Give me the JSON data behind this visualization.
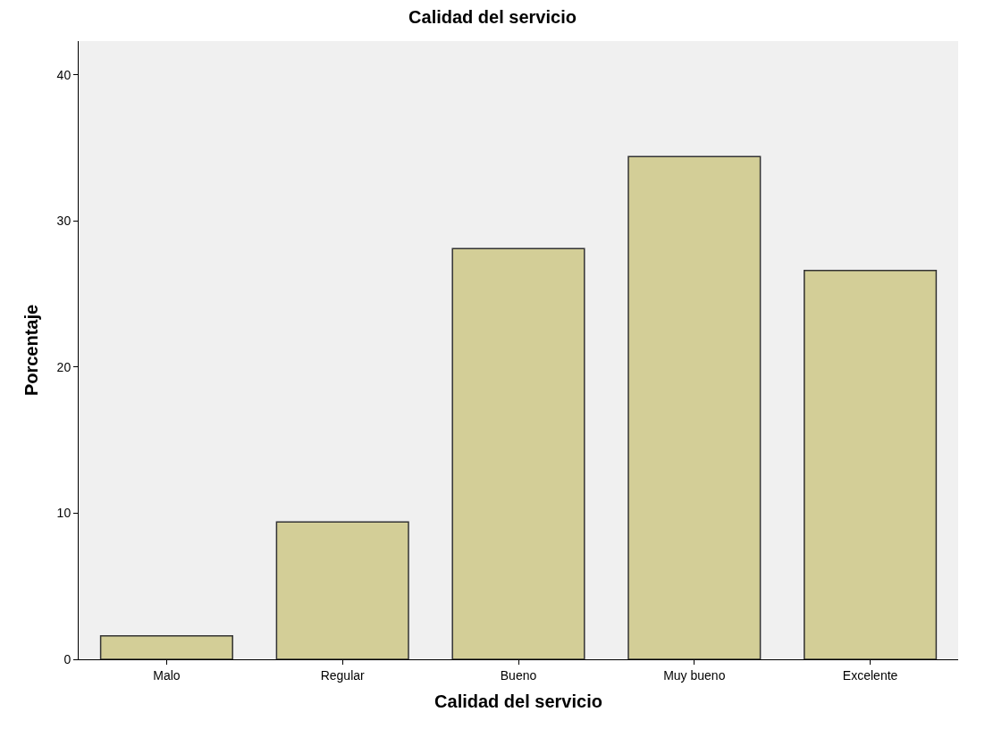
{
  "chart_data": {
    "type": "bar",
    "title": "Calidad del servicio",
    "xlabel": "Calidad del servicio",
    "ylabel": "Porcentaje",
    "categories": [
      "Malo",
      "Regular",
      "Bueno",
      "Muy bueno",
      "Excelente"
    ],
    "values": [
      1.6,
      9.4,
      28.1,
      34.4,
      26.6
    ],
    "color": "#d3ce97",
    "ylim": [
      0,
      42.3
    ],
    "yticks": [
      0,
      10,
      20,
      30,
      40
    ],
    "grid": false
  }
}
